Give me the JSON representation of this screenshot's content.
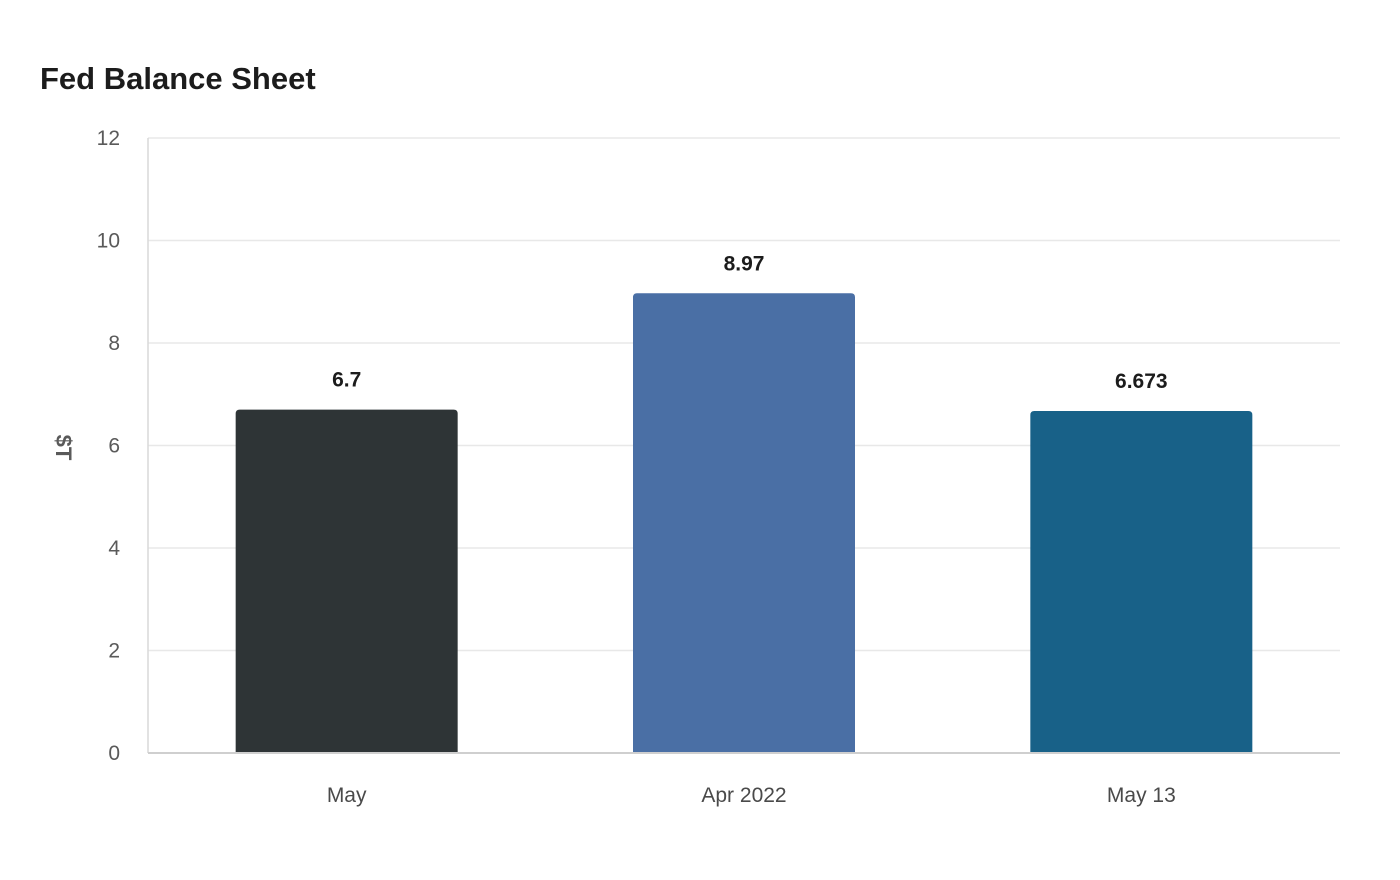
{
  "chart_data": {
    "type": "bar",
    "title": "Fed Balance Sheet",
    "ylabel": "$T",
    "xlabel": "",
    "categories": [
      "May",
      "Apr 2022",
      "May 13"
    ],
    "values": [
      6.7,
      8.97,
      6.673
    ],
    "data_labels": [
      "6.7",
      "8.97",
      "6.673"
    ],
    "colors": [
      "#2e3436",
      "#4a6fa5",
      "#186188"
    ],
    "ylim": [
      0,
      12
    ],
    "yticks": [
      0,
      2,
      4,
      6,
      8,
      10,
      12
    ],
    "grid": true,
    "legend": "none"
  }
}
